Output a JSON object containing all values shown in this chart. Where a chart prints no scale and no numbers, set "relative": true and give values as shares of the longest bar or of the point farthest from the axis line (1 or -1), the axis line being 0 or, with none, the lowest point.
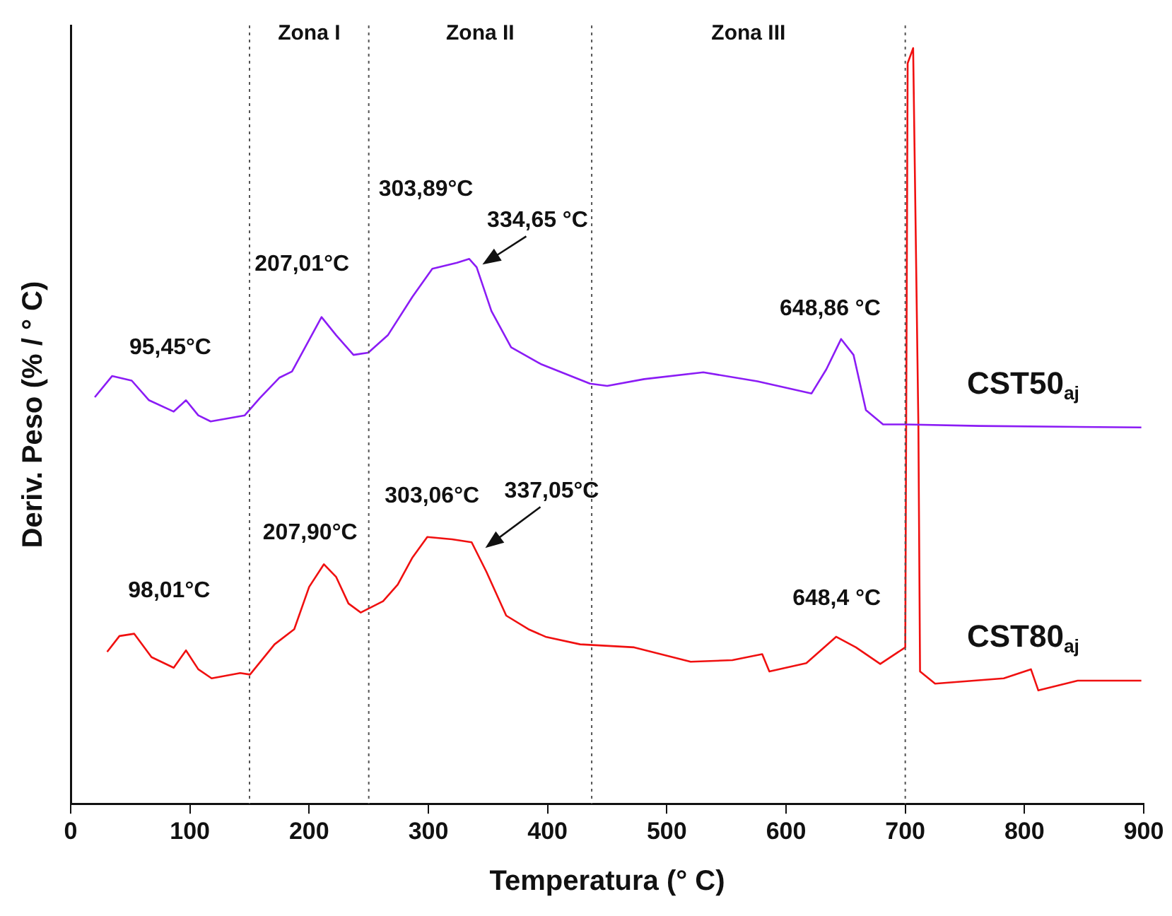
{
  "chart_data": {
    "type": "line",
    "relative": true,
    "xlabel": "Temperatura (° C)",
    "ylabel": "Deriv. Peso (% / ° C)",
    "xlim": [
      0,
      900
    ],
    "xticks": [
      0,
      100,
      200,
      300,
      400,
      500,
      600,
      700,
      800,
      900
    ],
    "grid": false,
    "legend": false,
    "marker": "none",
    "line_style": "solid",
    "series": [
      {
        "name": "CST50$_{aj}$",
        "color": "#8b1cf5",
        "x": [
          20.2,
          34.7,
          51.2,
          65.7,
          86.4,
          96.7,
          107,
          117.4,
          146,
          158.7,
          175.2,
          185.6,
          210.4,
          222.7,
          237.2,
          249.6,
          266,
          286.7,
          303.3,
          324,
          334.3,
          340.5,
          352.9,
          369.4,
          394.2,
          435.5,
          450,
          481,
          530.6,
          576,
          621.4,
          633.8,
          646.2,
          656.6,
          667,
          681.4,
          700,
          762,
          898
        ],
        "values": [
          0.538,
          0.566,
          0.56,
          0.534,
          0.519,
          0.534,
          0.514,
          0.506,
          0.514,
          0.537,
          0.564,
          0.572,
          0.644,
          0.62,
          0.594,
          0.597,
          0.62,
          0.671,
          0.708,
          0.716,
          0.721,
          0.71,
          0.652,
          0.604,
          0.582,
          0.556,
          0.553,
          0.562,
          0.571,
          0.559,
          0.543,
          0.575,
          0.615,
          0.594,
          0.521,
          0.502,
          0.502,
          0.5,
          0.498
        ]
      },
      {
        "name": "CST80$_{aj}$",
        "color": "#f01010",
        "x": [
          30.6,
          40.9,
          53.3,
          67.8,
          86.4,
          96.7,
          107,
          118.2,
          142.2,
          150.4,
          171,
          187.5,
          200,
          212.4,
          222.7,
          233,
          243.3,
          262,
          274.3,
          286.7,
          299.1,
          319.8,
          336.3,
          348.7,
          365.3,
          383.9,
          398.3,
          427.3,
          472.6,
          520,
          555,
          580,
          586,
          617,
          642,
          658.6,
          679,
          700,
          702,
          706.6,
          711,
          712.4,
          725,
          782.6,
          805.4,
          811.6,
          844.6,
          898
        ],
        "values": [
          0.201,
          0.222,
          0.225,
          0.194,
          0.18,
          0.203,
          0.178,
          0.166,
          0.173,
          0.171,
          0.211,
          0.231,
          0.287,
          0.317,
          0.3,
          0.265,
          0.253,
          0.268,
          0.29,
          0.326,
          0.353,
          0.35,
          0.346,
          0.307,
          0.249,
          0.231,
          0.221,
          0.211,
          0.207,
          0.188,
          0.19,
          0.198,
          0.175,
          0.186,
          0.221,
          0.207,
          0.185,
          0.207,
          0.98,
          1,
          0.5,
          0.175,
          0.159,
          0.166,
          0.178,
          0.15,
          0.163,
          0.163
        ]
      }
    ],
    "ref_lines": [
      {
        "axis": "x",
        "value": 150,
        "line_style": "dotted"
      },
      {
        "axis": "x",
        "value": 250,
        "line_style": "dotted"
      },
      {
        "axis": "x",
        "value": 437,
        "line_style": "dotted"
      },
      {
        "axis": "x",
        "value": 700,
        "line_style": "dotted"
      }
    ],
    "annotations": [
      "Zona I",
      "Zona II",
      "Zona III",
      {
        "text": "95,45°C",
        "x": 95.45,
        "y": 0.534
      },
      {
        "text": "207,01°C",
        "x": 207.01,
        "y": 0.644
      },
      {
        "text": "303,89°C",
        "x": 303.89,
        "y": 0.708
      },
      {
        "text": "334,65 °C",
        "x": 334.65,
        "y": 0.721
      },
      {
        "text": "648,86 °C",
        "x": 648.86,
        "y": 0.615
      },
      {
        "text": "98,01°C",
        "x": 98.01,
        "y": 0.203
      },
      {
        "text": "207,90°C",
        "x": 207.9,
        "y": 0.317
      },
      {
        "text": "303,06°C",
        "x": 303.06,
        "y": 0.353
      },
      {
        "text": "337,05°C",
        "x": 337.05,
        "y": 0.346
      },
      {
        "text": "648,4 °C",
        "x": 648.4,
        "y": 0.221
      }
    ]
  }
}
